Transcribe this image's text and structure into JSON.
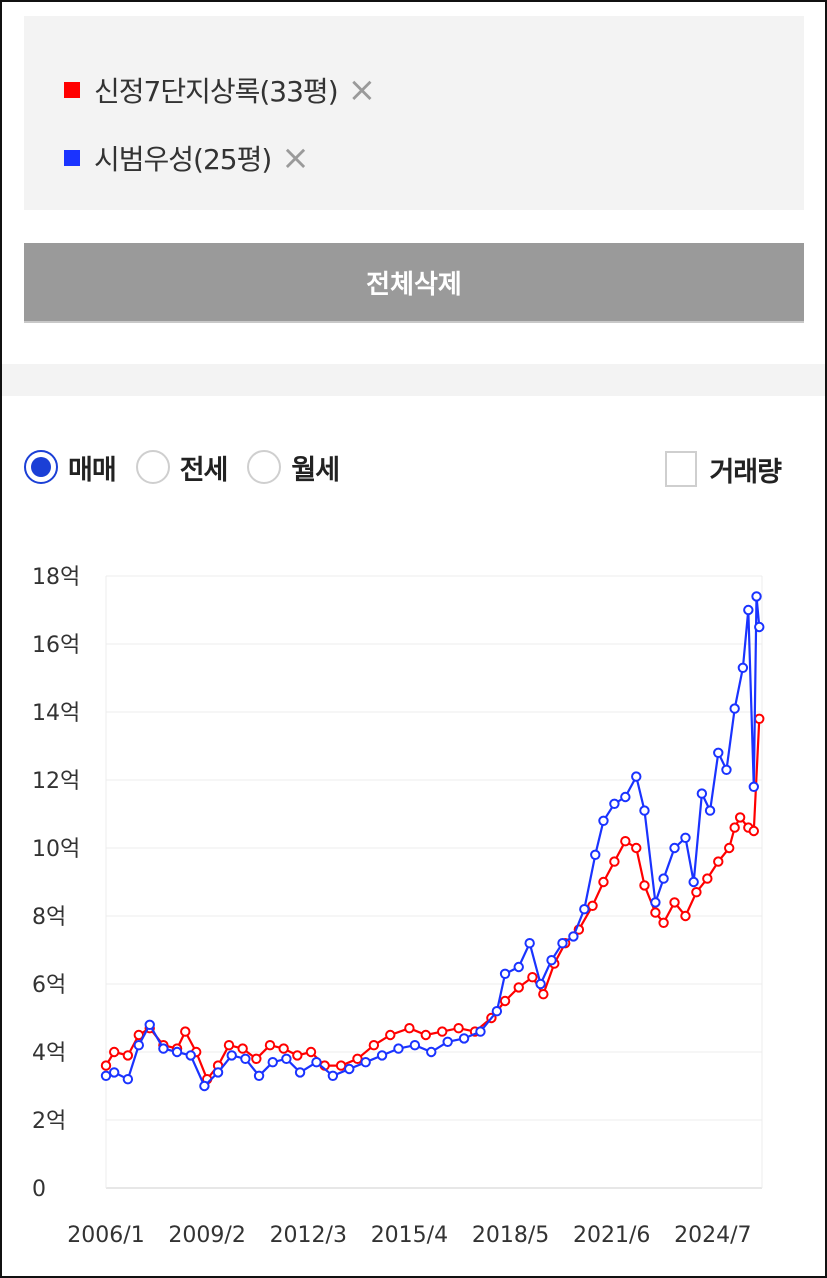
{
  "legend": [
    {
      "label": "신정7단지상록(33평)",
      "color": "#ff0000",
      "remove_icon": "×"
    },
    {
      "label": "시범우성(25평)",
      "color": "#1a33ff",
      "remove_icon": "×"
    }
  ],
  "delete_all_label": "전체삭제",
  "trade_types": [
    {
      "label": "매매",
      "selected": true
    },
    {
      "label": "전세",
      "selected": false
    },
    {
      "label": "월세",
      "selected": false
    }
  ],
  "volume_label": "거래량",
  "volume_checked": false,
  "chart_data": {
    "type": "line",
    "title": "",
    "xlabel": "",
    "ylabel": "",
    "ylim": [
      0,
      18
    ],
    "y_ticks": [
      0,
      2,
      4,
      6,
      8,
      10,
      12,
      14,
      16,
      18
    ],
    "y_tick_labels": [
      "0",
      "2억",
      "4억",
      "6억",
      "8억",
      "10억",
      "12억",
      "14억",
      "16억",
      "18억"
    ],
    "x_range": [
      "2006/1",
      "2026/1"
    ],
    "x_tick_labels": [
      "2006/1",
      "2009/2",
      "2012/3",
      "2015/4",
      "2018/5",
      "2021/6",
      "2024/7"
    ],
    "grid": true,
    "series": [
      {
        "name": "신정7단지상록(33평)",
        "color": "#ff0000",
        "points": [
          [
            "2006/1",
            3.6
          ],
          [
            "2006/4",
            4.0
          ],
          [
            "2006/9",
            3.9
          ],
          [
            "2007/1",
            4.5
          ],
          [
            "2007/5",
            4.7
          ],
          [
            "2007/10",
            4.2
          ],
          [
            "2008/3",
            4.1
          ],
          [
            "2008/6",
            4.6
          ],
          [
            "2008/10",
            4.0
          ],
          [
            "2009/2",
            3.2
          ],
          [
            "2009/6",
            3.6
          ],
          [
            "2009/10",
            4.2
          ],
          [
            "2010/3",
            4.1
          ],
          [
            "2010/8",
            3.8
          ],
          [
            "2011/1",
            4.2
          ],
          [
            "2011/6",
            4.1
          ],
          [
            "2011/11",
            3.9
          ],
          [
            "2012/4",
            4.0
          ],
          [
            "2012/9",
            3.6
          ],
          [
            "2013/3",
            3.6
          ],
          [
            "2013/9",
            3.8
          ],
          [
            "2014/3",
            4.2
          ],
          [
            "2014/9",
            4.5
          ],
          [
            "2015/4",
            4.7
          ],
          [
            "2015/10",
            4.5
          ],
          [
            "2016/4",
            4.6
          ],
          [
            "2016/10",
            4.7
          ],
          [
            "2017/4",
            4.6
          ],
          [
            "2017/10",
            5.0
          ],
          [
            "2018/3",
            5.5
          ],
          [
            "2018/8",
            5.9
          ],
          [
            "2019/1",
            6.2
          ],
          [
            "2019/5",
            5.7
          ],
          [
            "2019/9",
            6.6
          ],
          [
            "2020/1",
            7.2
          ],
          [
            "2020/6",
            7.6
          ],
          [
            "2020/11",
            8.3
          ],
          [
            "2021/3",
            9.0
          ],
          [
            "2021/7",
            9.6
          ],
          [
            "2021/11",
            10.2
          ],
          [
            "2022/3",
            10.0
          ],
          [
            "2022/6",
            8.9
          ],
          [
            "2022/10",
            8.1
          ],
          [
            "2023/1",
            7.8
          ],
          [
            "2023/5",
            8.4
          ],
          [
            "2023/9",
            8.0
          ],
          [
            "2024/1",
            8.7
          ],
          [
            "2024/5",
            9.1
          ],
          [
            "2024/9",
            9.6
          ],
          [
            "2025/1",
            10.0
          ],
          [
            "2025/3",
            10.6
          ],
          [
            "2025/5",
            10.9
          ],
          [
            "2025/8",
            10.6
          ],
          [
            "2025/10",
            10.5
          ],
          [
            "2025/12",
            13.8
          ]
        ]
      },
      {
        "name": "시범우성(25평)",
        "color": "#1a33ff",
        "points": [
          [
            "2006/1",
            3.3
          ],
          [
            "2006/4",
            3.4
          ],
          [
            "2006/9",
            3.2
          ],
          [
            "2007/1",
            4.2
          ],
          [
            "2007/5",
            4.8
          ],
          [
            "2007/10",
            4.1
          ],
          [
            "2008/3",
            4.0
          ],
          [
            "2008/8",
            3.9
          ],
          [
            "2009/1",
            3.0
          ],
          [
            "2009/6",
            3.4
          ],
          [
            "2009/11",
            3.9
          ],
          [
            "2010/4",
            3.8
          ],
          [
            "2010/9",
            3.3
          ],
          [
            "2011/2",
            3.7
          ],
          [
            "2011/7",
            3.8
          ],
          [
            "2011/12",
            3.4
          ],
          [
            "2012/6",
            3.7
          ],
          [
            "2012/12",
            3.3
          ],
          [
            "2013/6",
            3.5
          ],
          [
            "2013/12",
            3.7
          ],
          [
            "2014/6",
            3.9
          ],
          [
            "2014/12",
            4.1
          ],
          [
            "2015/6",
            4.2
          ],
          [
            "2015/12",
            4.0
          ],
          [
            "2016/6",
            4.3
          ],
          [
            "2016/12",
            4.4
          ],
          [
            "2017/6",
            4.6
          ],
          [
            "2017/12",
            5.2
          ],
          [
            "2018/3",
            6.3
          ],
          [
            "2018/8",
            6.5
          ],
          [
            "2018/12",
            7.2
          ],
          [
            "2019/4",
            6.0
          ],
          [
            "2019/8",
            6.7
          ],
          [
            "2019/12",
            7.2
          ],
          [
            "2020/4",
            7.4
          ],
          [
            "2020/8",
            8.2
          ],
          [
            "2020/12",
            9.8
          ],
          [
            "2021/3",
            10.8
          ],
          [
            "2021/7",
            11.3
          ],
          [
            "2021/11",
            11.5
          ],
          [
            "2022/3",
            12.1
          ],
          [
            "2022/6",
            11.1
          ],
          [
            "2022/10",
            8.4
          ],
          [
            "2023/1",
            9.1
          ],
          [
            "2023/5",
            10.0
          ],
          [
            "2023/9",
            10.3
          ],
          [
            "2023/12",
            9.0
          ],
          [
            "2024/3",
            11.6
          ],
          [
            "2024/6",
            11.1
          ],
          [
            "2024/9",
            12.8
          ],
          [
            "2024/12",
            12.3
          ],
          [
            "2025/3",
            14.1
          ],
          [
            "2025/6",
            15.3
          ],
          [
            "2025/8",
            17.0
          ],
          [
            "2025/10",
            11.8
          ],
          [
            "2025/11",
            17.4
          ],
          [
            "2025/12",
            16.5
          ]
        ]
      }
    ]
  }
}
